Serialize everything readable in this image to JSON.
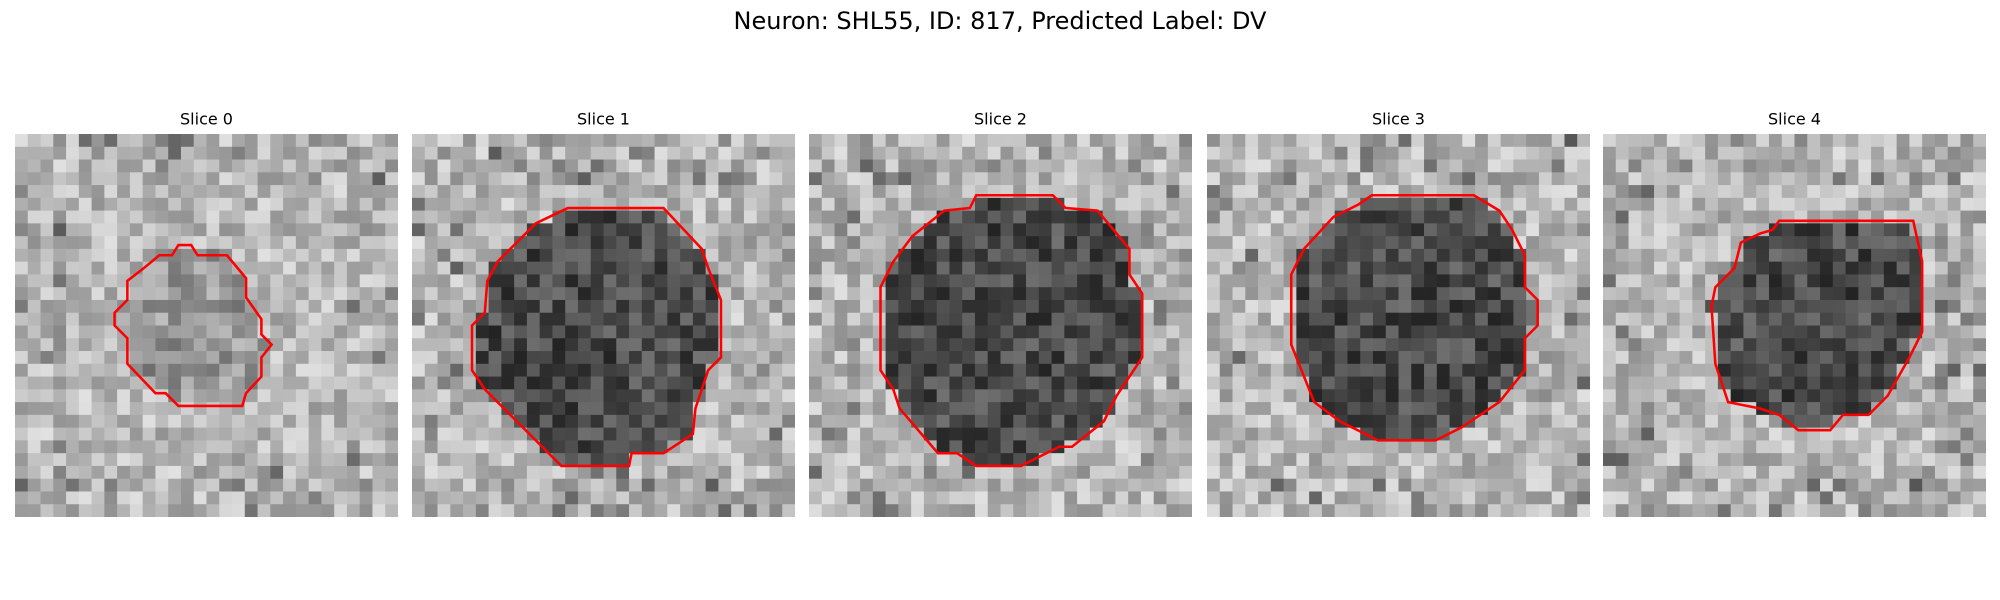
{
  "figure": {
    "title": "Neuron: SHL55, ID: 817, Predicted Label: DV",
    "panels": [
      {
        "title": "Slice 0"
      },
      {
        "title": "Slice 1"
      },
      {
        "title": "Slice 2"
      },
      {
        "title": "Slice 3"
      },
      {
        "title": "Slice 4"
      }
    ]
  }
}
